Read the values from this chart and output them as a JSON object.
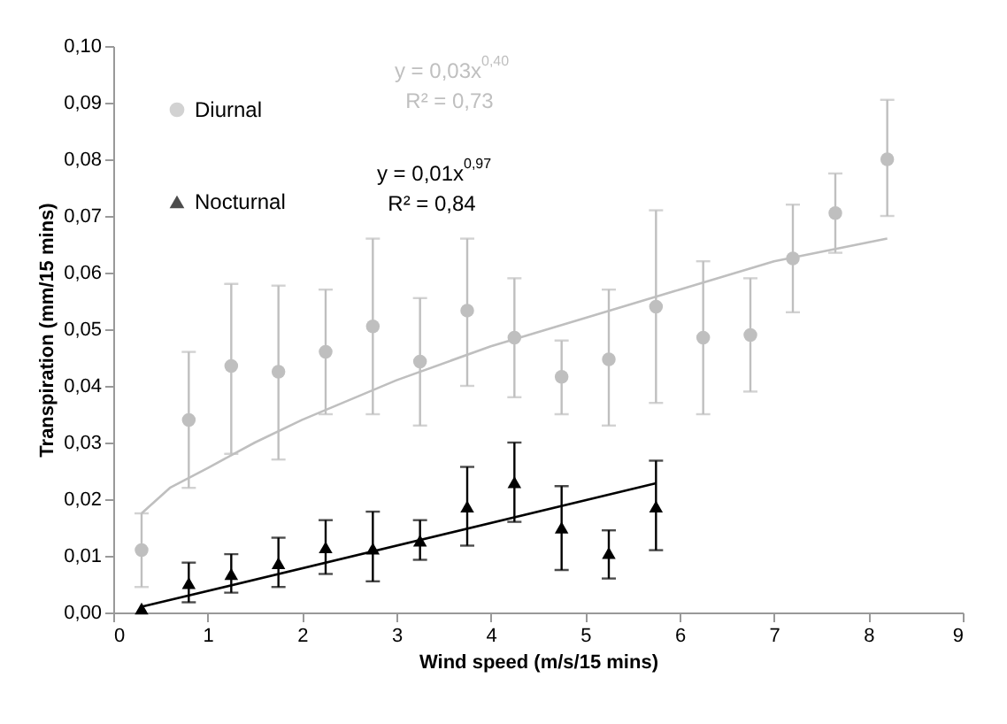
{
  "chart_data": {
    "type": "scatter",
    "xlabel": "Wind speed (m/s/15 mins)",
    "ylabel": "Transpiration (mm/15 mins)",
    "xlim": [
      0,
      9
    ],
    "xticks": [
      0,
      1,
      2,
      3,
      4,
      5,
      6,
      7,
      8,
      9
    ],
    "ylim": [
      0,
      0.1
    ],
    "yticks": [
      {
        "value": 0,
        "label": "0,00"
      },
      {
        "value": 0.01,
        "label": "0,01"
      },
      {
        "value": 0.02,
        "label": "0,02"
      },
      {
        "value": 0.03,
        "label": "0,03"
      },
      {
        "value": 0.04,
        "label": "0,04"
      },
      {
        "value": 0.05,
        "label": "0,05"
      },
      {
        "value": 0.06,
        "label": "0,06"
      },
      {
        "value": 0.07,
        "label": "0,07"
      },
      {
        "value": 0.08,
        "label": "0,08"
      },
      {
        "value": 0.09,
        "label": "0,09"
      },
      {
        "value": 0.1,
        "label": "0,10"
      }
    ],
    "grid": false,
    "legend": "top left",
    "series": [
      {
        "name": "Diurnal",
        "marker": "circle",
        "color": "#bfbfbf",
        "x": [
          0.3,
          0.8,
          1.25,
          1.75,
          2.25,
          2.75,
          3.25,
          3.75,
          4.25,
          4.75,
          5.25,
          5.75,
          6.25,
          6.75,
          7.2,
          7.65,
          8.2
        ],
        "values": [
          0.011,
          0.034,
          0.0435,
          0.0425,
          0.046,
          0.0505,
          0.0443,
          0.0533,
          0.0485,
          0.0416,
          0.0447,
          0.054,
          0.0485,
          0.049,
          0.0625,
          0.0705,
          0.08
        ],
        "errors": [
          [
            0.0045,
            0.0175
          ],
          [
            0.022,
            0.046
          ],
          [
            0.028,
            0.058
          ],
          [
            0.027,
            0.0577
          ],
          [
            0.035,
            0.057
          ],
          [
            0.035,
            0.066
          ],
          [
            0.033,
            0.0555
          ],
          [
            0.04,
            0.066
          ],
          [
            0.038,
            0.059
          ],
          [
            0.035,
            0.048
          ],
          [
            0.033,
            0.057
          ],
          [
            0.037,
            0.071
          ],
          [
            0.035,
            0.062
          ],
          [
            0.039,
            0.059
          ],
          [
            0.053,
            0.072
          ],
          [
            0.0635,
            0.0775
          ],
          [
            0.07,
            0.0905
          ]
        ]
      },
      {
        "name": "Nocturnal",
        "marker": "triangle",
        "color": "#000000",
        "x": [
          0.3,
          0.8,
          1.25,
          1.75,
          2.25,
          2.75,
          3.25,
          3.75,
          4.25,
          4.75,
          5.25,
          5.75
        ],
        "values": [
          0.0007,
          0.0052,
          0.0068,
          0.0087,
          0.0115,
          0.0113,
          0.0127,
          0.0187,
          0.023,
          0.015,
          0.0105,
          0.0187
        ],
        "errors": [
          null,
          [
            0.0018,
            0.0088
          ],
          [
            0.0035,
            0.0103
          ],
          [
            0.0045,
            0.0132
          ],
          [
            0.0068,
            0.0163
          ],
          [
            0.0055,
            0.0178
          ],
          [
            0.0093,
            0.0163
          ],
          [
            0.0118,
            0.0257
          ],
          [
            0.016,
            0.03
          ],
          [
            0.0075,
            0.0223
          ],
          [
            0.006,
            0.0145
          ],
          [
            0.011,
            0.0268
          ]
        ]
      },
      {
        "type": "line",
        "color": "#bfbfbf",
        "x": [
          0.3,
          0.6,
          1,
          1.5,
          2,
          3,
          4,
          5,
          6,
          7,
          8.2
        ],
        "values": [
          0.0175,
          0.022,
          0.0255,
          0.03,
          0.034,
          0.041,
          0.047,
          0.052,
          0.057,
          0.062,
          0.066
        ]
      },
      {
        "type": "line",
        "color": "#000000",
        "x": [
          0.3,
          5.75
        ],
        "values": [
          0.001,
          0.0228
        ]
      }
    ],
    "annotations": [
      "y = 0,03x$^{0,40}$",
      "R² = 0,73",
      "y = 0,01x$^{0,97}$",
      "R² = 0,84"
    ]
  }
}
